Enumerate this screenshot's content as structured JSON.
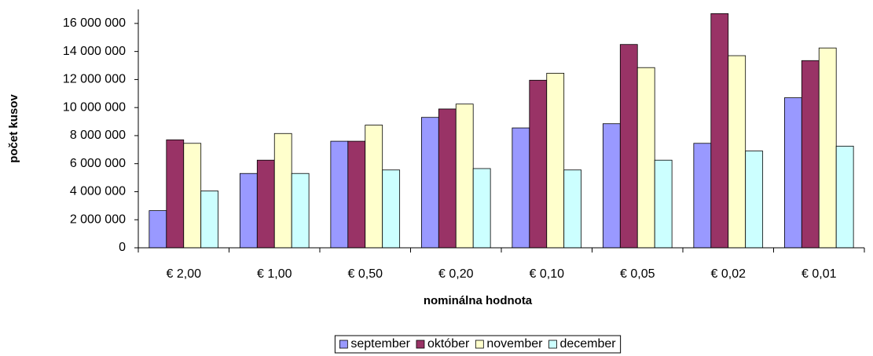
{
  "chart_data": {
    "type": "bar",
    "xlabel": "nominálna hodnota",
    "ylabel": "počet kusov",
    "categories": [
      "€ 2,00",
      "€ 1,00",
      "€ 0,50",
      "€ 0,20",
      "€ 0,10",
      "€ 0,05",
      "€ 0,02",
      "€ 0,01"
    ],
    "series": [
      {
        "name": "september",
        "color": "#9999ff",
        "values": [
          2650000,
          5300000,
          7600000,
          9300000,
          8550000,
          8850000,
          7450000,
          10700000
        ]
      },
      {
        "name": "október",
        "color": "#993366",
        "values": [
          7700000,
          6250000,
          7600000,
          9900000,
          11950000,
          14500000,
          16700000,
          13350000
        ]
      },
      {
        "name": "november",
        "color": "#ffffcc",
        "values": [
          7450000,
          8150000,
          8750000,
          10250000,
          12450000,
          12850000,
          13700000,
          14250000
        ]
      },
      {
        "name": "december",
        "color": "#ccffff",
        "values": [
          4050000,
          5300000,
          5550000,
          5650000,
          5550000,
          6250000,
          6900000,
          7250000
        ]
      }
    ],
    "ylim": [
      0,
      17000000
    ],
    "yticks": [
      0,
      {
        "value": 2000000,
        "label": "2 000 000"
      },
      {
        "value": 4000000,
        "label": "4 000 000"
      },
      {
        "value": 6000000,
        "label": "6 000 000"
      },
      {
        "value": 8000000,
        "label": "8 000 000"
      },
      {
        "value": 10000000,
        "label": "10 000 000"
      },
      {
        "value": 12000000,
        "label": "12 000 000"
      },
      {
        "value": 14000000,
        "label": "14 000 000"
      },
      {
        "value": 16000000,
        "label": "16 000 000"
      }
    ],
    "legend": "bottom"
  }
}
